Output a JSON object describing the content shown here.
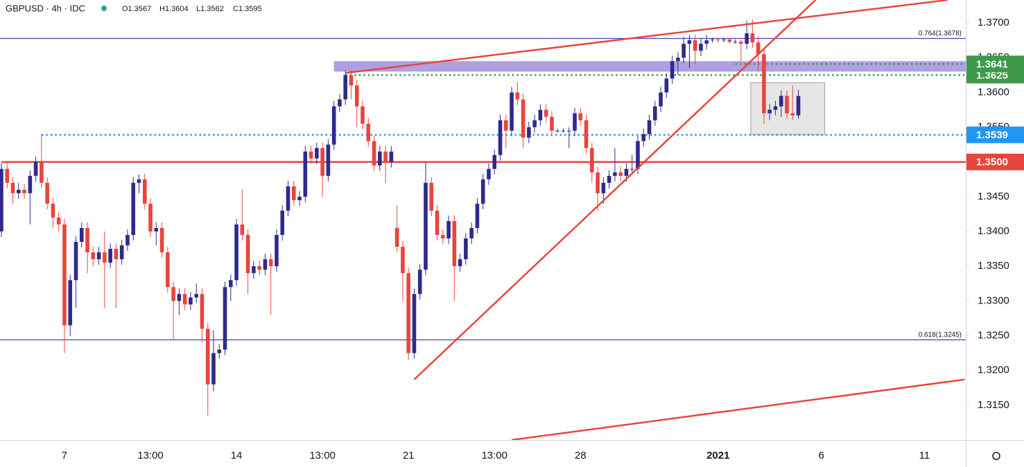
{
  "chart_data": {
    "type": "candlestick",
    "header": {
      "symbol": "GBPUSD · 4h · IDC",
      "open": "O1.3567",
      "high": "H1.3604",
      "low": "L1.3562",
      "close": "C1.3595"
    },
    "up_color": "#2e2a8c",
    "down_color": "#e8453c",
    "categories": [
      null,
      null,
      null,
      null,
      null,
      null,
      null,
      null,
      null,
      null,
      null,
      "7",
      null,
      null,
      null,
      null,
      null,
      null,
      null,
      null,
      null,
      null,
      null,
      null,
      null,
      null,
      "13:00",
      null,
      null,
      null,
      null,
      null,
      null,
      null,
      null,
      null,
      null,
      null,
      null,
      null,
      null,
      "14",
      null,
      null,
      null,
      null,
      null,
      null,
      null,
      null,
      null,
      null,
      null,
      null,
      null,
      null,
      "13:00",
      null,
      null,
      null,
      null,
      null,
      null,
      null,
      null,
      null,
      null,
      null,
      null,
      null,
      null,
      "21",
      null,
      null,
      null,
      null,
      null,
      null,
      null,
      null,
      null,
      null,
      null,
      null,
      null,
      null,
      "13:00",
      null,
      null,
      null,
      null,
      null,
      null,
      null,
      null,
      null,
      null,
      null,
      null,
      null,
      null,
      "28",
      null,
      null,
      null,
      null,
      null,
      null,
      null,
      null,
      null,
      null,
      null,
      null,
      null,
      null,
      null,
      null,
      null,
      null,
      null,
      null,
      null,
      null,
      null,
      "2021",
      null,
      null,
      null,
      null,
      null,
      null,
      null,
      null,
      null,
      null,
      null,
      null,
      null,
      null,
      null,
      null,
      null,
      "6",
      null,
      null,
      null,
      null,
      null,
      null,
      null,
      null,
      null,
      null,
      null,
      null,
      null,
      null,
      null,
      null,
      null,
      "11"
    ],
    "open": [
      1.34,
      1.349,
      1.347,
      1.3455,
      1.346,
      1.3455,
      1.348,
      1.35,
      1.347,
      1.344,
      1.342,
      1.341,
      1.3265,
      1.333,
      1.3385,
      1.3405,
      1.337,
      1.336,
      1.337,
      1.3355,
      1.3375,
      1.336,
      1.338,
      1.3395,
      1.347,
      1.3475,
      1.344,
      1.34,
      1.3405,
      1.337,
      1.332,
      1.33,
      1.331,
      1.3295,
      1.3305,
      1.331,
      1.326,
      1.318,
      1.3225,
      1.323,
      1.332,
      1.333,
      1.341,
      1.3395,
      1.334,
      1.335,
      1.3345,
      1.336,
      1.335,
      1.3395,
      1.343,
      1.3465,
      1.3445,
      1.345,
      1.3515,
      1.3505,
      1.352,
      1.348,
      1.3525,
      1.358,
      1.359,
      1.3625,
      1.361,
      1.358,
      1.3555,
      1.353,
      1.3495,
      1.3515,
      1.35,
      1.3405,
      1.3378,
      1.334,
      1.3225,
      1.331,
      1.3345,
      1.347,
      1.343,
      1.3395,
      1.339,
      1.3415,
      1.335,
      1.336,
      1.339,
      1.3405,
      1.344,
      1.3475,
      1.349,
      1.351,
      1.356,
      1.3545,
      1.36,
      1.359,
      1.3535,
      1.355,
      1.356,
      1.3575,
      1.3565,
      1.3545,
      1.3545,
      1.3545,
      1.3545,
      1.357,
      1.356,
      1.352,
      1.3485,
      1.3455,
      1.347,
      1.348,
      1.3485,
      1.348,
      1.349,
      1.349,
      1.353,
      1.354,
      1.356,
      1.358,
      1.36,
      1.362,
      1.3645,
      1.365,
      1.367,
      1.3675,
      1.366,
      1.367,
      1.3675,
      1.3676,
      1.3675,
      1.3676,
      1.3673,
      1.3673,
      1.367,
      1.3685,
      1.3672,
      1.3655,
      1.357,
      1.3575,
      1.358,
      1.3595,
      1.357,
      1.3567,
      null,
      null,
      null,
      null,
      null,
      null,
      null,
      null,
      null,
      null,
      null,
      null,
      null,
      null,
      null,
      null,
      null,
      null,
      null,
      null,
      null,
      null
    ],
    "high": [
      1.3498,
      1.35,
      1.3478,
      1.347,
      1.3468,
      1.3488,
      1.3508,
      1.354,
      1.3478,
      1.3448,
      1.3428,
      1.3418,
      1.3338,
      1.3393,
      1.3413,
      1.3413,
      1.3378,
      1.3378,
      1.34,
      1.3383,
      1.3383,
      1.3388,
      1.3403,
      1.3478,
      1.3482,
      1.3483,
      1.3448,
      1.3413,
      1.3413,
      1.3378,
      1.3328,
      1.3318,
      1.3318,
      1.3313,
      1.3325,
      1.3318,
      1.3268,
      1.3258,
      1.3238,
      1.3328,
      1.3338,
      1.3418,
      1.346,
      1.3403,
      1.3358,
      1.3358,
      1.3368,
      1.3368,
      1.3403,
      1.3438,
      1.3473,
      1.3473,
      1.3458,
      1.3523,
      1.3523,
      1.3528,
      1.3528,
      1.3533,
      1.3588,
      1.3598,
      1.3632,
      1.3632,
      1.3618,
      1.3588,
      1.3563,
      1.3538,
      1.3523,
      1.3523,
      1.3523,
      1.3438,
      1.3386,
      1.3348,
      1.3318,
      1.3353,
      1.35,
      1.3478,
      1.3438,
      1.3403,
      1.3423,
      1.3423,
      1.3368,
      1.3398,
      1.3413,
      1.3448,
      1.3483,
      1.3498,
      1.3518,
      1.3568,
      1.3568,
      1.3608,
      1.3615,
      1.3598,
      1.3558,
      1.3568,
      1.3583,
      1.3583,
      1.3573,
      1.3548,
      1.3548,
      1.355,
      1.3578,
      1.3578,
      1.3568,
      1.3528,
      1.3493,
      1.3478,
      1.3488,
      1.352,
      1.3493,
      1.3498,
      1.351,
      1.3538,
      1.3548,
      1.3568,
      1.3588,
      1.3608,
      1.3628,
      1.3653,
      1.3658,
      1.368,
      1.3683,
      1.3683,
      1.3678,
      1.3683,
      1.3679,
      1.3679,
      1.3679,
      1.3679,
      1.3676,
      1.3676,
      1.3703,
      1.3705,
      1.368,
      1.3663,
      1.3583,
      1.3588,
      1.3603,
      1.3603,
      1.361,
      1.3604,
      null,
      null,
      null,
      null,
      null,
      null,
      null,
      null,
      null,
      null,
      null,
      null,
      null,
      null,
      null,
      null,
      null,
      null,
      null,
      null,
      null,
      null
    ],
    "low": [
      1.3392,
      1.3462,
      1.344,
      1.3447,
      1.3447,
      1.341,
      1.3472,
      1.3462,
      1.3432,
      1.3405,
      1.34,
      1.3225,
      1.325,
      1.329,
      1.3377,
      1.334,
      1.335,
      1.3352,
      1.329,
      1.3347,
      1.329,
      1.3352,
      1.3372,
      1.3387,
      1.3455,
      1.3432,
      1.3392,
      1.338,
      1.3362,
      1.3312,
      1.3245,
      1.328,
      1.3287,
      1.3287,
      1.3297,
      1.324,
      1.3135,
      1.317,
      1.3217,
      1.3222,
      1.33,
      1.3322,
      1.3387,
      1.331,
      1.3332,
      1.3337,
      1.3337,
      1.328,
      1.3342,
      1.3387,
      1.3422,
      1.3437,
      1.3437,
      1.3442,
      1.3497,
      1.3497,
      1.345,
      1.3472,
      1.3517,
      1.3572,
      1.3582,
      1.359,
      1.355,
      1.3547,
      1.3522,
      1.3487,
      1.3487,
      1.347,
      1.3492,
      1.337,
      1.33,
      1.3215,
      1.3217,
      1.3302,
      1.3337,
      1.3422,
      1.3387,
      1.3382,
      1.3382,
      1.33,
      1.3342,
      1.3352,
      1.3382,
      1.3397,
      1.3432,
      1.3467,
      1.3482,
      1.3502,
      1.352,
      1.3537,
      1.3582,
      1.352,
      1.3527,
      1.3542,
      1.3552,
      1.3557,
      1.3537,
      1.3542,
      1.3542,
      1.352,
      1.3537,
      1.3552,
      1.3512,
      1.347,
      1.343,
      1.344,
      1.3462,
      1.3472,
      1.3472,
      1.3472,
      1.3482,
      1.3482,
      1.3522,
      1.3532,
      1.3552,
      1.3572,
      1.3592,
      1.3612,
      1.3625,
      1.3642,
      1.3635,
      1.364,
      1.3652,
      1.3662,
      1.3672,
      1.3672,
      1.3672,
      1.367,
      1.367,
      1.3645,
      1.3662,
      1.3664,
      1.363,
      1.3555,
      1.356,
      1.3567,
      1.3565,
      1.3562,
      1.356,
      1.3562,
      null,
      null,
      null,
      null,
      null,
      null,
      null,
      null,
      null,
      null,
      null,
      null,
      null,
      null,
      null,
      null,
      null,
      null,
      null,
      null,
      null,
      null
    ],
    "close": [
      1.349,
      1.347,
      1.3455,
      1.346,
      1.3455,
      1.348,
      1.35,
      1.347,
      1.344,
      1.342,
      1.341,
      1.3265,
      1.333,
      1.3385,
      1.3405,
      1.337,
      1.336,
      1.337,
      1.3355,
      1.3375,
      1.336,
      1.338,
      1.3395,
      1.347,
      1.3475,
      1.344,
      1.34,
      1.3405,
      1.337,
      1.332,
      1.33,
      1.331,
      1.3295,
      1.3305,
      1.331,
      1.326,
      1.318,
      1.3225,
      1.323,
      1.332,
      1.333,
      1.341,
      1.3395,
      1.334,
      1.335,
      1.3345,
      1.336,
      1.335,
      1.3395,
      1.343,
      1.3465,
      1.3445,
      1.345,
      1.3515,
      1.3505,
      1.352,
      1.348,
      1.3525,
      1.358,
      1.359,
      1.3625,
      1.361,
      1.358,
      1.3555,
      1.353,
      1.3495,
      1.3515,
      1.35,
      1.3515,
      1.3378,
      1.334,
      1.3225,
      1.331,
      1.3345,
      1.347,
      1.343,
      1.3395,
      1.339,
      1.3415,
      1.335,
      1.336,
      1.339,
      1.3405,
      1.344,
      1.3475,
      1.349,
      1.351,
      1.356,
      1.3545,
      1.36,
      1.359,
      1.3535,
      1.355,
      1.356,
      1.3575,
      1.3565,
      1.3545,
      1.3545,
      1.3545,
      1.3545,
      1.357,
      1.356,
      1.352,
      1.3485,
      1.3455,
      1.347,
      1.348,
      1.3485,
      1.348,
      1.349,
      1.349,
      1.353,
      1.354,
      1.356,
      1.358,
      1.36,
      1.362,
      1.3645,
      1.365,
      1.367,
      1.3675,
      1.366,
      1.367,
      1.3675,
      1.3676,
      1.3675,
      1.3676,
      1.3673,
      1.3673,
      1.367,
      1.3685,
      1.3672,
      1.3655,
      1.357,
      1.3575,
      1.358,
      1.3595,
      1.357,
      1.3567,
      1.3595,
      null,
      null,
      null,
      null,
      null,
      null,
      null,
      null,
      null,
      null,
      null,
      null,
      null,
      null,
      null,
      null,
      null,
      null,
      null,
      null,
      null,
      null
    ],
    "ylim": [
      1.31,
      1.3733
    ],
    "yticks": [
      {
        "value": 1.315,
        "label": "1.3150"
      },
      {
        "value": 1.32,
        "label": "1.3200"
      },
      {
        "value": 1.325,
        "label": "1.3250"
      },
      {
        "value": 1.33,
        "label": "1.3300"
      },
      {
        "value": 1.335,
        "label": "1.3350"
      },
      {
        "value": 1.34,
        "label": "1.3400"
      },
      {
        "value": 1.345,
        "label": "1.3450"
      },
      {
        "value": 1.35,
        "label": "1.3500"
      },
      {
        "value": 1.355,
        "label": "1.3550"
      },
      {
        "value": 1.36,
        "label": "1.3600"
      },
      {
        "value": 1.365,
        "label": "1.3650"
      },
      {
        "value": 1.37,
        "label": "1.3700"
      }
    ],
    "fib_color": "#4b3fb5",
    "fib_levels": [
      {
        "value": 1.3678,
        "label": "0.764(1.3678)"
      },
      {
        "value": 1.3245,
        "label": "0.618(1.3245)"
      }
    ],
    "zone": {
      "ylim": [
        1.363,
        1.3645
      ],
      "start": 58,
      "color": "#a28fdc"
    },
    "box": {
      "x": [
        130.7,
        143.6
      ],
      "y": [
        1.3539,
        1.3614
      ]
    },
    "levels": [
      {
        "value": 1.35,
        "label": "1.3500",
        "color": "#e8453c",
        "style": "solid",
        "start": 0
      },
      {
        "value": 1.3539,
        "label": "1.3539",
        "color": "#2196f3",
        "style": "dotted",
        "start": 7
      },
      {
        "value": 1.3625,
        "label": "1.3625",
        "color": "#3d9a4a",
        "style": "dotted",
        "start": 60
      },
      {
        "value": 1.3641,
        "label": "1.3641",
        "color": "#3d9a4a",
        "style": "dotted",
        "start": 128
      }
    ],
    "trend_color": "#e8453c",
    "trendlines": [
      {
        "x": [
          60,
          165
        ],
        "y": [
          1.3628,
          1.3733
        ]
      },
      {
        "x": [
          72,
          142
        ],
        "y": [
          1.3187,
          1.3733
        ]
      },
      {
        "x": [
          89,
          168
        ],
        "y": [
          1.31,
          1.3187
        ]
      }
    ]
  }
}
